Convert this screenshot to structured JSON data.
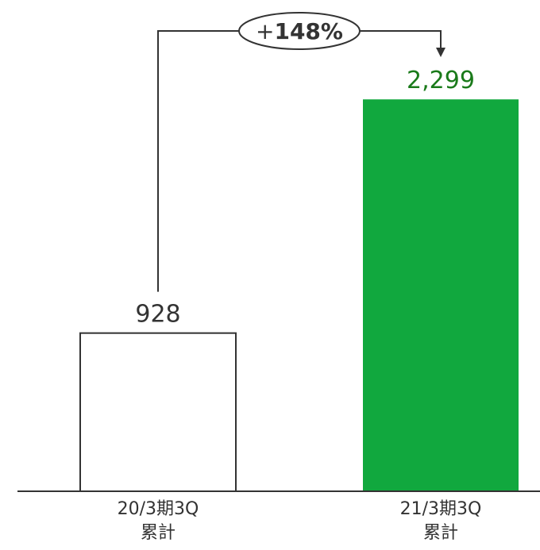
{
  "chart_data": {
    "type": "bar",
    "categories": [
      [
        "20/3期3Q",
        "累計"
      ],
      [
        "21/3期3Q",
        "累計"
      ]
    ],
    "values": [
      928,
      2299
    ],
    "value_labels": [
      "928",
      "2,299"
    ],
    "bar_styles": [
      {
        "fill": "#ffffff",
        "stroke": "#333333",
        "label_color": "#333333"
      },
      {
        "fill": "#11a83e",
        "stroke": "none",
        "label_color": "#1a7a1a"
      }
    ],
    "annotation": {
      "sign": "+",
      "value": "148%",
      "from": 0,
      "to": 1
    },
    "ylim": [
      0,
      2300
    ],
    "grid": false,
    "legend": "none"
  }
}
